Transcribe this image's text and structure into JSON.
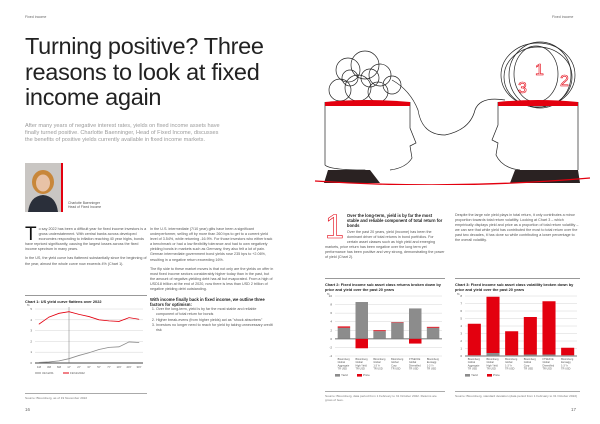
{
  "header": {
    "left": "Fixed income",
    "right": "Fixed income"
  },
  "title": "Turning positive? Three reasons to look at fixed income again",
  "standfirst": "After many years of negative interest rates, yields on fixed income assets have finally turned positive. Charlotte Baenninger, Head of Fixed Income, discusses the benefits of positive yields currently available in fixed income markets.",
  "author": {
    "name": "Charlotte Baenninger",
    "role": "Head of Fixed Income"
  },
  "col1": {
    "dropcap": "T",
    "p1": "o say 2022 has been a difficult year for fixed income investors is a gross understatement. With central banks across developed economies responding to inflation reaching 40 year highs, bonds have repriced significantly, causing the largest losses across the fixed income spectrum in many years.",
    "p2": "In the US, the yield curve has flattened substantially since the beginning of the year, almost the whole curve now exceeds 4% (Chart 1)."
  },
  "col2": {
    "p1": "In the U.S. intermediate (7/10 year) gilts have been a significant underperformer, selling off by more than 260 bps to get to a current yield level of 3.54%, while returning -16.9%. For those investors who either track a benchmark or had a low flexibility tolerance and had to own negatively yielding bonds in markets such as Germany, they also felt a lot of pain. German intermediate government bond yields rose 235 bps to +2.06%, resulting in a negative return exceeding 16%.",
    "p2": "The flip side to these market moves is that not only are the yields on offer in most fixed income sectors considerably higher today than in the past, but the amount of negative-yielding debt has all but evaporated. From a high of USD18 trillion at the end of 2020, now there is less than USD 2 trillion of negative yielding debt outstanding.",
    "lead": "With income finally back in fixed income, we outline three factors for optimism:",
    "items": [
      "Over the long-term, yield is by far the most stable and reliable component of total return for bonds",
      "Higher break-evens (from higher yields) act as \"shock absorbers\"",
      "Investors no longer need to reach for yield by taking unnecessary credit risk"
    ]
  },
  "section1": {
    "number": "1",
    "heading": "Over the long-term, yield is by far the most stable and reliable component of total return for bonds",
    "text": "Over the past 20 years, yield (income) has been the dominant driver of total returns in bond portfolios. For certain asset classes such as high yield and emerging markets, price return has been negative over the long term yet performance has been positive and very strong, demonstrating the power of yield (Chart 2)."
  },
  "col4": {
    "text": "Despite the large role yield plays in total return, it only contributes a minor proportion towards total return volatility. Looking at Chart 3 – which emprirically displays yield and price as a proportion of total return volatility – we can see that while yield has contributed the most to total return over the past two decades, it has done so while contributing a lower percentage to the overall volatility."
  },
  "illustration": {
    "numbers": [
      "1",
      "2",
      "3"
    ]
  },
  "page_numbers": {
    "left": "16",
    "right": "17"
  },
  "colors": {
    "red": "#e3000f",
    "grey": "#8c8c8c"
  },
  "chart_data": [
    {
      "type": "line",
      "title": "Chart 1: US yield curve flattens over 2022",
      "ylabel": "%",
      "ylim": [
        0,
        5
      ],
      "x": [
        "1M",
        "3M",
        "6M",
        "1Y",
        "2Y",
        "3Y",
        "5Y",
        "7Y",
        "10Y",
        "20Y",
        "30Y"
      ],
      "yticks": [
        "0",
        "1",
        "2",
        "3",
        "4",
        "5"
      ],
      "series": [
        {
          "name": "31/12/21",
          "color": "#8c8c8c",
          "values": [
            0.05,
            0.1,
            0.2,
            0.4,
            0.7,
            0.95,
            1.25,
            1.45,
            1.5,
            1.95,
            1.9
          ]
        },
        {
          "name": "19/11/2022",
          "color": "#e3000f",
          "values": [
            3.6,
            4.25,
            4.6,
            4.75,
            4.5,
            4.3,
            4.0,
            3.9,
            3.85,
            4.2,
            4.05
          ]
        }
      ],
      "source": "Source: Bloomberg, as of 19 November 2022"
    },
    {
      "type": "bar",
      "stacked": true,
      "title": "Chart 2: Fixed income sub asset class returns broken down by price and yield over the past 20 years",
      "ylabel": "%",
      "ylim": [
        -4,
        10
      ],
      "yticks": [
        "-4",
        "-2",
        "0",
        "2",
        "4",
        "6",
        "8",
        "10"
      ],
      "categories": [
        "Bloomberg Global Aggregate TR USD",
        "Bloomberg Global High Yield TR USD",
        "Bloomberg Global 1-3 Yr TR USD",
        "Bloomberg Global Corp TR USD",
        "FTSE/ICE Global Diversified TR USD",
        "Bloomberg Euroagg 1-3 Yr TR USD"
      ],
      "series": [
        {
          "name": "Yield",
          "color": "#8c8c8c",
          "values": [
            2.6,
            8.6,
            1.8,
            3.8,
            7.1,
            2.6
          ]
        },
        {
          "name": "Price",
          "color": "#e3000f",
          "values": [
            0.3,
            -2.2,
            0.2,
            0.1,
            -1.1,
            0.2
          ]
        }
      ],
      "source": "Source: Bloomberg, data period from 1 February to 31 October 2022. Returns are gross of fees."
    },
    {
      "type": "bar",
      "stacked": true,
      "title": "Chart 3: Fixed income sub asset class volatility broken down by price and yield over the past 20 years",
      "ylabel": "%",
      "ylim": [
        0,
        8
      ],
      "yticks": [
        "0",
        "1",
        "2",
        "3",
        "4",
        "5",
        "6",
        "7",
        "8"
      ],
      "categories": [
        "Bloomberg Global Aggregate TR USD",
        "Bloomberg Global High Yield TR USD",
        "Bloomberg Global 1-3 Yr TR USD",
        "Bloomberg Global Corp TR USD",
        "FTSE/ICE Global Diversified TR USD",
        "Bloomberg Euroagg 1-3 Yr TR USD"
      ],
      "series": [
        {
          "name": "Yield",
          "color": "#8c8c8c",
          "values": [
            0.1,
            0.4,
            0.1,
            0.2,
            0.2,
            0.1
          ]
        },
        {
          "name": "Price",
          "color": "#e3000f",
          "values": [
            4.2,
            7.5,
            3.2,
            5.0,
            7.1,
            1.0
          ]
        }
      ],
      "source": "Source: Bloomberg, standard deviation (data period from 1 February to 31 October 2022)"
    }
  ]
}
